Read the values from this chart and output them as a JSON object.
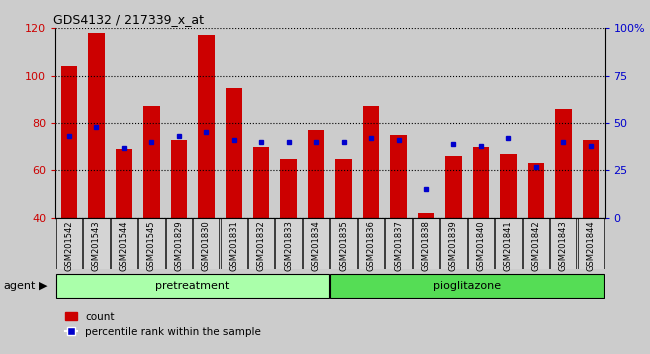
{
  "title": "GDS4132 / 217339_x_at",
  "samples": [
    "GSM201542",
    "GSM201543",
    "GSM201544",
    "GSM201545",
    "GSM201829",
    "GSM201830",
    "GSM201831",
    "GSM201832",
    "GSM201833",
    "GSM201834",
    "GSM201835",
    "GSM201836",
    "GSM201837",
    "GSM201838",
    "GSM201839",
    "GSM201840",
    "GSM201841",
    "GSM201842",
    "GSM201843",
    "GSM201844"
  ],
  "counts": [
    104,
    118,
    69,
    87,
    73,
    117,
    95,
    70,
    65,
    77,
    65,
    87,
    75,
    42,
    66,
    70,
    67,
    63,
    86,
    73
  ],
  "percentiles": [
    43,
    48,
    37,
    40,
    43,
    45,
    41,
    40,
    40,
    40,
    40,
    42,
    41,
    15,
    39,
    38,
    42,
    27,
    40,
    38
  ],
  "pretreatment_count": 10,
  "pioglitazone_count": 10,
  "ylim_left": [
    40,
    120
  ],
  "ylim_right": [
    0,
    100
  ],
  "bar_color": "#cc0000",
  "dot_color": "#0000cc",
  "bar_width": 0.6,
  "pretreatment_color": "#aaffaa",
  "pioglitazone_color": "#55dd55",
  "agent_label": "agent",
  "pretreatment_label": "pretreatment",
  "pioglitazone_label": "pioglitazone",
  "legend_count_label": "count",
  "legend_pct_label": "percentile rank within the sample",
  "ylabel_left_color": "#cc0000",
  "ylabel_right_color": "#0000cc",
  "background_color": "#cccccc",
  "plot_bg_color": "#ffffff",
  "column_bg_color": "#cccccc",
  "yticks_left": [
    40,
    60,
    80,
    100,
    120
  ],
  "yticks_right": [
    0,
    25,
    50,
    75,
    100
  ]
}
